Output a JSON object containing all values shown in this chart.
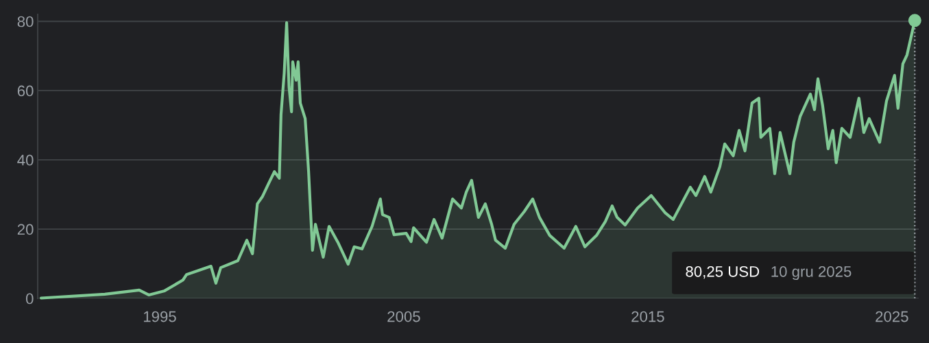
{
  "chart_data": {
    "type": "area",
    "x": [
      1990.14,
      1992.75,
      1994.16,
      1994.55,
      1995.2,
      1995.95,
      1996.1,
      1997.1,
      1997.3,
      1997.5,
      1998.2,
      1998.57,
      1998.8,
      1999.0,
      1999.2,
      1999.47,
      1999.7,
      1999.9,
      1999.97,
      2000.1,
      2000.2,
      2000.3,
      2000.4,
      2000.45,
      2000.59,
      2000.67,
      2000.76,
      2000.96,
      2001.1,
      2001.26,
      2001.38,
      2001.7,
      2001.94,
      2002.3,
      2002.72,
      2002.97,
      2003.29,
      2003.7,
      2004.04,
      2004.13,
      2004.4,
      2004.6,
      2005.1,
      2005.3,
      2005.4,
      2005.93,
      2006.24,
      2006.57,
      2007.0,
      2007.36,
      2007.56,
      2007.78,
      2008.06,
      2008.34,
      2008.6,
      2008.76,
      2009.16,
      2009.52,
      2009.94,
      2010.28,
      2010.56,
      2010.98,
      2011.57,
      2012.05,
      2012.42,
      2012.9,
      2013.26,
      2013.54,
      2013.74,
      2014.07,
      2014.58,
      2015.14,
      2015.7,
      2016.04,
      2016.74,
      2016.97,
      2017.33,
      2017.58,
      2017.95,
      2018.15,
      2018.5,
      2018.74,
      2018.98,
      2019.27,
      2019.55,
      2019.63,
      2020.0,
      2020.2,
      2020.42,
      2020.82,
      2020.98,
      2021.24,
      2021.66,
      2021.83,
      2021.97,
      2022.16,
      2022.39,
      2022.58,
      2022.72,
      2022.95,
      2023.29,
      2023.65,
      2023.85,
      2024.07,
      2024.5,
      2024.78,
      2025.11,
      2025.25,
      2025.45,
      2025.62,
      2025.94
    ],
    "series": [
      {
        "color": "#81c995",
        "values": [
          0.1,
          1.2,
          2.4,
          1.0,
          2.2,
          5.3,
          6.9,
          9.3,
          4.4,
          8.9,
          10.9,
          16.8,
          12.9,
          27.3,
          29.3,
          33.3,
          36.6,
          34.7,
          53.1,
          65,
          79.6,
          61,
          53.9,
          68.3,
          63,
          68.3,
          56.4,
          51.9,
          36.6,
          13.9,
          21.4,
          11.9,
          20.8,
          16.2,
          9.9,
          14.9,
          14.3,
          20.8,
          28.7,
          24.2,
          23.4,
          18.4,
          18.8,
          16.4,
          20.4,
          16.2,
          22.8,
          17.4,
          28.7,
          26.1,
          30.7,
          34.1,
          23.4,
          27.3,
          21.4,
          16.8,
          14.5,
          21.4,
          25.1,
          28.7,
          23.4,
          18.2,
          14.5,
          20.8,
          14.9,
          18.2,
          22.2,
          26.7,
          23.4,
          21.2,
          26.1,
          29.7,
          24.8,
          22.8,
          32.1,
          29.7,
          35.2,
          30.7,
          38.0,
          44.6,
          41.2,
          48.5,
          42.6,
          56.4,
          57.8,
          46.5,
          49.1,
          36.0,
          47.9,
          36.0,
          45.1,
          52.5,
          59.0,
          54.5,
          63.4,
          55.8,
          43.2,
          48.5,
          39.2,
          49.1,
          46.5,
          57.8,
          47.9,
          51.9,
          45.1,
          57.0,
          64.4,
          54.9,
          67.7,
          70.3,
          80.25
        ]
      }
    ],
    "xlim": [
      1990.0,
      2026.1
    ],
    "ylim": [
      0,
      82
    ],
    "xticks": [
      1995,
      2005,
      2015,
      2025
    ],
    "yticks": [
      0,
      20,
      40,
      60,
      80
    ],
    "grid": "y",
    "marker": "none",
    "line_style": "solid",
    "ref_lines": [
      {
        "axis": "x",
        "value": 2025.94,
        "color": "#9aa0a6",
        "line_style": "dotted"
      }
    ],
    "annotations": [
      "80,25 USD",
      "10 gru 2025"
    ]
  }
}
